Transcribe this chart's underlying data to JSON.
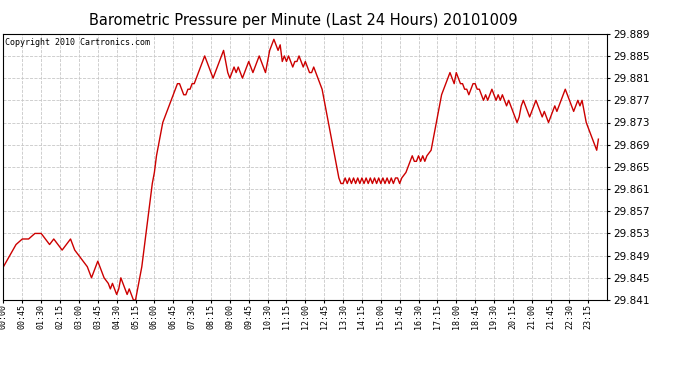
{
  "title": "Barometric Pressure per Minute (Last 24 Hours) 20101009",
  "copyright": "Copyright 2010 Cartronics.com",
  "line_color": "#cc0000",
  "bg_color": "#ffffff",
  "grid_color": "#c8c8c8",
  "ylim": [
    29.841,
    29.889
  ],
  "yticks": [
    29.841,
    29.845,
    29.849,
    29.853,
    29.857,
    29.861,
    29.865,
    29.869,
    29.873,
    29.877,
    29.881,
    29.885,
    29.889
  ],
  "xtick_labels": [
    "00:00",
    "00:45",
    "01:30",
    "02:15",
    "03:00",
    "03:45",
    "04:30",
    "05:15",
    "06:00",
    "06:45",
    "07:30",
    "08:15",
    "09:00",
    "09:45",
    "10:30",
    "11:15",
    "12:00",
    "12:45",
    "13:30",
    "14:15",
    "15:00",
    "15:45",
    "16:30",
    "17:15",
    "18:00",
    "18:45",
    "19:30",
    "20:15",
    "21:00",
    "21:45",
    "22:30",
    "23:15"
  ],
  "key_points": [
    [
      0,
      29.847
    ],
    [
      15,
      29.849
    ],
    [
      30,
      29.851
    ],
    [
      45,
      29.852
    ],
    [
      60,
      29.852
    ],
    [
      75,
      29.853
    ],
    [
      90,
      29.853
    ],
    [
      100,
      29.852
    ],
    [
      110,
      29.851
    ],
    [
      120,
      29.852
    ],
    [
      130,
      29.851
    ],
    [
      140,
      29.85
    ],
    [
      150,
      29.851
    ],
    [
      160,
      29.852
    ],
    [
      165,
      29.851
    ],
    [
      170,
      29.85
    ],
    [
      180,
      29.849
    ],
    [
      190,
      29.848
    ],
    [
      200,
      29.847
    ],
    [
      210,
      29.845
    ],
    [
      215,
      29.846
    ],
    [
      220,
      29.847
    ],
    [
      225,
      29.848
    ],
    [
      230,
      29.847
    ],
    [
      240,
      29.845
    ],
    [
      250,
      29.844
    ],
    [
      255,
      29.843
    ],
    [
      260,
      29.844
    ],
    [
      265,
      29.843
    ],
    [
      270,
      29.842
    ],
    [
      275,
      29.843
    ],
    [
      280,
      29.845
    ],
    [
      285,
      29.844
    ],
    [
      290,
      29.843
    ],
    [
      295,
      29.842
    ],
    [
      300,
      29.843
    ],
    [
      305,
      29.842
    ],
    [
      310,
      29.841
    ],
    [
      315,
      29.841
    ],
    [
      320,
      29.843
    ],
    [
      325,
      29.845
    ],
    [
      330,
      29.847
    ],
    [
      335,
      29.85
    ],
    [
      340,
      29.853
    ],
    [
      345,
      29.856
    ],
    [
      350,
      29.859
    ],
    [
      355,
      29.862
    ],
    [
      360,
      29.864
    ],
    [
      365,
      29.867
    ],
    [
      370,
      29.869
    ],
    [
      375,
      29.871
    ],
    [
      380,
      29.873
    ],
    [
      385,
      29.874
    ],
    [
      390,
      29.875
    ],
    [
      395,
      29.876
    ],
    [
      400,
      29.877
    ],
    [
      405,
      29.878
    ],
    [
      410,
      29.879
    ],
    [
      415,
      29.88
    ],
    [
      420,
      29.88
    ],
    [
      425,
      29.879
    ],
    [
      430,
      29.878
    ],
    [
      435,
      29.878
    ],
    [
      440,
      29.879
    ],
    [
      445,
      29.879
    ],
    [
      450,
      29.88
    ],
    [
      455,
      29.88
    ],
    [
      460,
      29.881
    ],
    [
      465,
      29.882
    ],
    [
      470,
      29.883
    ],
    [
      475,
      29.884
    ],
    [
      480,
      29.885
    ],
    [
      485,
      29.884
    ],
    [
      490,
      29.883
    ],
    [
      495,
      29.882
    ],
    [
      500,
      29.881
    ],
    [
      505,
      29.882
    ],
    [
      510,
      29.883
    ],
    [
      515,
      29.884
    ],
    [
      520,
      29.885
    ],
    [
      525,
      29.886
    ],
    [
      530,
      29.884
    ],
    [
      535,
      29.882
    ],
    [
      540,
      29.881
    ],
    [
      545,
      29.882
    ],
    [
      550,
      29.883
    ],
    [
      555,
      29.882
    ],
    [
      560,
      29.883
    ],
    [
      565,
      29.882
    ],
    [
      570,
      29.881
    ],
    [
      575,
      29.882
    ],
    [
      580,
      29.883
    ],
    [
      585,
      29.884
    ],
    [
      590,
      29.883
    ],
    [
      595,
      29.882
    ],
    [
      600,
      29.883
    ],
    [
      605,
      29.884
    ],
    [
      610,
      29.885
    ],
    [
      615,
      29.884
    ],
    [
      620,
      29.883
    ],
    [
      625,
      29.882
    ],
    [
      630,
      29.884
    ],
    [
      635,
      29.886
    ],
    [
      640,
      29.887
    ],
    [
      645,
      29.888
    ],
    [
      650,
      29.887
    ],
    [
      655,
      29.886
    ],
    [
      660,
      29.887
    ],
    [
      665,
      29.884
    ],
    [
      670,
      29.885
    ],
    [
      675,
      29.884
    ],
    [
      680,
      29.885
    ],
    [
      685,
      29.884
    ],
    [
      690,
      29.883
    ],
    [
      695,
      29.884
    ],
    [
      700,
      29.884
    ],
    [
      705,
      29.885
    ],
    [
      710,
      29.884
    ],
    [
      715,
      29.883
    ],
    [
      720,
      29.884
    ],
    [
      725,
      29.883
    ],
    [
      730,
      29.882
    ],
    [
      735,
      29.882
    ],
    [
      740,
      29.883
    ],
    [
      745,
      29.882
    ],
    [
      750,
      29.881
    ],
    [
      755,
      29.88
    ],
    [
      760,
      29.879
    ],
    [
      765,
      29.877
    ],
    [
      770,
      29.875
    ],
    [
      775,
      29.873
    ],
    [
      780,
      29.871
    ],
    [
      785,
      29.869
    ],
    [
      790,
      29.867
    ],
    [
      795,
      29.865
    ],
    [
      800,
      29.863
    ],
    [
      805,
      29.862
    ],
    [
      810,
      29.862
    ],
    [
      815,
      29.863
    ],
    [
      820,
      29.862
    ],
    [
      825,
      29.863
    ],
    [
      830,
      29.862
    ],
    [
      835,
      29.863
    ],
    [
      840,
      29.862
    ],
    [
      845,
      29.863
    ],
    [
      850,
      29.862
    ],
    [
      855,
      29.863
    ],
    [
      860,
      29.862
    ],
    [
      865,
      29.863
    ],
    [
      870,
      29.862
    ],
    [
      875,
      29.863
    ],
    [
      880,
      29.862
    ],
    [
      885,
      29.863
    ],
    [
      890,
      29.862
    ],
    [
      895,
      29.863
    ],
    [
      900,
      29.862
    ],
    [
      905,
      29.863
    ],
    [
      910,
      29.862
    ],
    [
      915,
      29.863
    ],
    [
      920,
      29.862
    ],
    [
      925,
      29.863
    ],
    [
      930,
      29.862
    ],
    [
      935,
      29.863
    ],
    [
      940,
      29.863
    ],
    [
      945,
      29.862
    ],
    [
      950,
      29.863
    ],
    [
      960,
      29.864
    ],
    [
      965,
      29.865
    ],
    [
      970,
      29.866
    ],
    [
      975,
      29.867
    ],
    [
      980,
      29.866
    ],
    [
      985,
      29.866
    ],
    [
      990,
      29.867
    ],
    [
      995,
      29.866
    ],
    [
      1000,
      29.867
    ],
    [
      1005,
      29.866
    ],
    [
      1010,
      29.867
    ],
    [
      1020,
      29.868
    ],
    [
      1025,
      29.87
    ],
    [
      1030,
      29.872
    ],
    [
      1035,
      29.874
    ],
    [
      1040,
      29.876
    ],
    [
      1045,
      29.878
    ],
    [
      1050,
      29.879
    ],
    [
      1055,
      29.88
    ],
    [
      1060,
      29.881
    ],
    [
      1065,
      29.882
    ],
    [
      1070,
      29.881
    ],
    [
      1075,
      29.88
    ],
    [
      1080,
      29.882
    ],
    [
      1085,
      29.881
    ],
    [
      1090,
      29.88
    ],
    [
      1095,
      29.88
    ],
    [
      1100,
      29.879
    ],
    [
      1105,
      29.879
    ],
    [
      1110,
      29.878
    ],
    [
      1115,
      29.879
    ],
    [
      1120,
      29.88
    ],
    [
      1125,
      29.88
    ],
    [
      1130,
      29.879
    ],
    [
      1135,
      29.879
    ],
    [
      1140,
      29.878
    ],
    [
      1145,
      29.877
    ],
    [
      1150,
      29.878
    ],
    [
      1155,
      29.877
    ],
    [
      1160,
      29.878
    ],
    [
      1165,
      29.879
    ],
    [
      1170,
      29.878
    ],
    [
      1175,
      29.877
    ],
    [
      1180,
      29.878
    ],
    [
      1185,
      29.877
    ],
    [
      1190,
      29.878
    ],
    [
      1195,
      29.877
    ],
    [
      1200,
      29.876
    ],
    [
      1205,
      29.877
    ],
    [
      1210,
      29.876
    ],
    [
      1215,
      29.875
    ],
    [
      1220,
      29.874
    ],
    [
      1225,
      29.873
    ],
    [
      1230,
      29.874
    ],
    [
      1235,
      29.876
    ],
    [
      1240,
      29.877
    ],
    [
      1245,
      29.876
    ],
    [
      1250,
      29.875
    ],
    [
      1255,
      29.874
    ],
    [
      1260,
      29.875
    ],
    [
      1265,
      29.876
    ],
    [
      1270,
      29.877
    ],
    [
      1275,
      29.876
    ],
    [
      1280,
      29.875
    ],
    [
      1285,
      29.874
    ],
    [
      1290,
      29.875
    ],
    [
      1295,
      29.874
    ],
    [
      1300,
      29.873
    ],
    [
      1305,
      29.874
    ],
    [
      1310,
      29.875
    ],
    [
      1315,
      29.876
    ],
    [
      1320,
      29.875
    ],
    [
      1325,
      29.876
    ],
    [
      1330,
      29.877
    ],
    [
      1335,
      29.878
    ],
    [
      1340,
      29.879
    ],
    [
      1345,
      29.878
    ],
    [
      1350,
      29.877
    ],
    [
      1355,
      29.876
    ],
    [
      1360,
      29.875
    ],
    [
      1365,
      29.876
    ],
    [
      1370,
      29.877
    ],
    [
      1375,
      29.876
    ],
    [
      1380,
      29.877
    ],
    [
      1385,
      29.875
    ],
    [
      1390,
      29.873
    ],
    [
      1395,
      29.872
    ],
    [
      1400,
      29.871
    ],
    [
      1405,
      29.87
    ],
    [
      1410,
      29.869
    ],
    [
      1415,
      29.868
    ],
    [
      1419,
      29.87
    ]
  ]
}
